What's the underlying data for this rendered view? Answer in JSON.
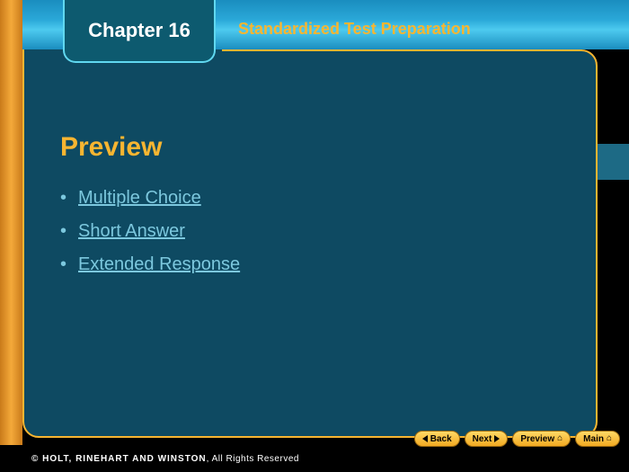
{
  "chapter": {
    "label": "Chapter 16"
  },
  "section": {
    "title": "Standardized Test Preparation"
  },
  "preview": {
    "heading": "Preview",
    "links": [
      {
        "label": "Multiple Choice"
      },
      {
        "label": "Short Answer"
      },
      {
        "label": "Extended Response"
      }
    ]
  },
  "nav": {
    "back": "Back",
    "next": "Next",
    "preview": "Preview",
    "main": "Main"
  },
  "footer": {
    "bold": "© HOLT, RINEHART AND WINSTON",
    "rest": ", All Rights Reserved"
  },
  "colors": {
    "accent_yellow": "#f7b531",
    "panel_bg": "#0e4a62",
    "link_cyan": "#7cc8de",
    "black": "#000000"
  }
}
